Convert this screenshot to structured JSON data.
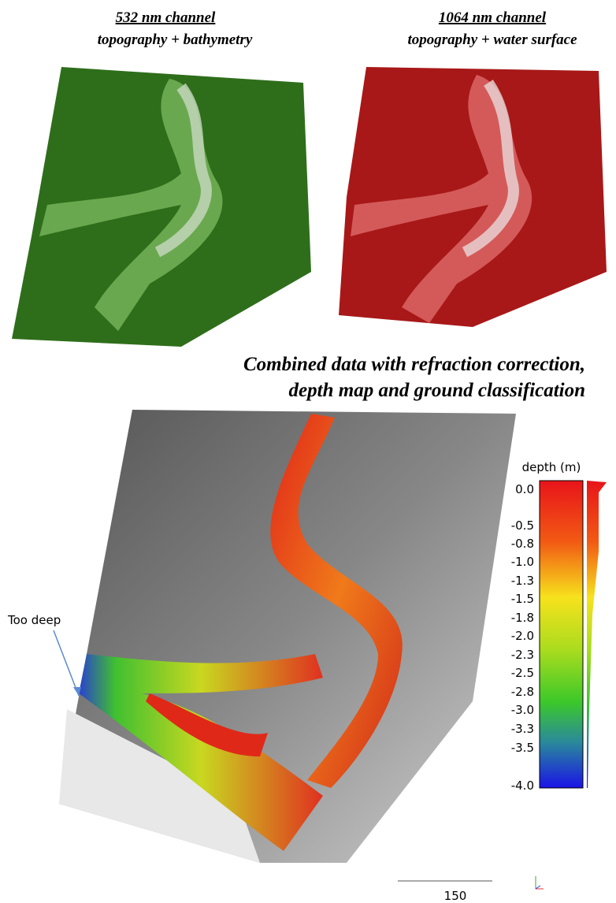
{
  "panels": [
    {
      "title": "532 nm channel",
      "subtitle": "topography + bathymetry"
    },
    {
      "title": "1064 nm channel",
      "subtitle": "topography + water surface"
    }
  ],
  "combined": {
    "title_lines": [
      "Combined data with refraction correction,",
      "depth map and ground classification"
    ]
  },
  "annotation": "Too deep",
  "legend": {
    "title": "depth (m)",
    "labels": [
      "0.0",
      "-0.5",
      "-0.8",
      "-1.0",
      "-1.3",
      "-1.5",
      "-1.8",
      "-2.0",
      "-2.3",
      "-2.5",
      "-2.8",
      "-3.0",
      "-3.3",
      "-3.5",
      "-4.0"
    ]
  },
  "scale_bar": "150"
}
